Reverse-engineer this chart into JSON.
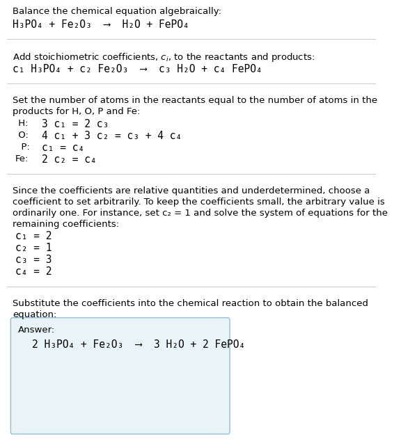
{
  "bg_color": "#ffffff",
  "text_color": "#000000",
  "answer_box_facecolor": "#e8f4f8",
  "answer_box_edgecolor": "#90c0d8",
  "plain_fontsize": 9.5,
  "formula_fontsize": 10.5,
  "sep_color": "#cccccc",
  "sep_lw": 0.8,
  "section1": {
    "line1": "Balance the chemical equation algebraically:",
    "line2": "H₃PO₄ + Fe₂O₃  ⟶  H₂O + FePO₄"
  },
  "section2": {
    "line1_pre": "Add stoichiometric coefficients, ",
    "line1_ci": "c_i",
    "line1_post": ", to the reactants and products:",
    "line2": "c₁ H₃PO₄ + c₂ Fe₂O₃  ⟶  c₃ H₂O + c₄ FePO₄"
  },
  "section3": {
    "line1": "Set the number of atoms in the reactants equal to the number of atoms in the",
    "line2": "products for H, O, P and Fe:",
    "equations": [
      {
        "label": " H:",
        "eq": "3 c₁ = 2 c₃"
      },
      {
        "label": " O:",
        "eq": "4 c₁ + 3 c₂ = c₃ + 4 c₄"
      },
      {
        "label": "  P:",
        "eq": "c₁ = c₄"
      },
      {
        "label": "Fe:",
        "eq": "2 c₂ = c₄"
      }
    ]
  },
  "section4": {
    "lines": [
      "Since the coefficients are relative quantities and underdetermined, choose a",
      "coefficient to set arbitrarily. To keep the coefficients small, the arbitrary value is",
      "ordinarily one. For instance, set c₂ = 1 and solve the system of equations for the",
      "remaining coefficients:"
    ],
    "coeffs": [
      "c₁ = 2",
      "c₂ = 1",
      "c₃ = 3",
      "c₄ = 2"
    ]
  },
  "section5": {
    "line1": "Substitute the coefficients into the chemical reaction to obtain the balanced",
    "line2": "equation:",
    "answer_label": "Answer:",
    "answer_formula": "2 H₃PO₄ + Fe₂O₃  ⟶  3 H₂O + 2 FePO₄"
  }
}
